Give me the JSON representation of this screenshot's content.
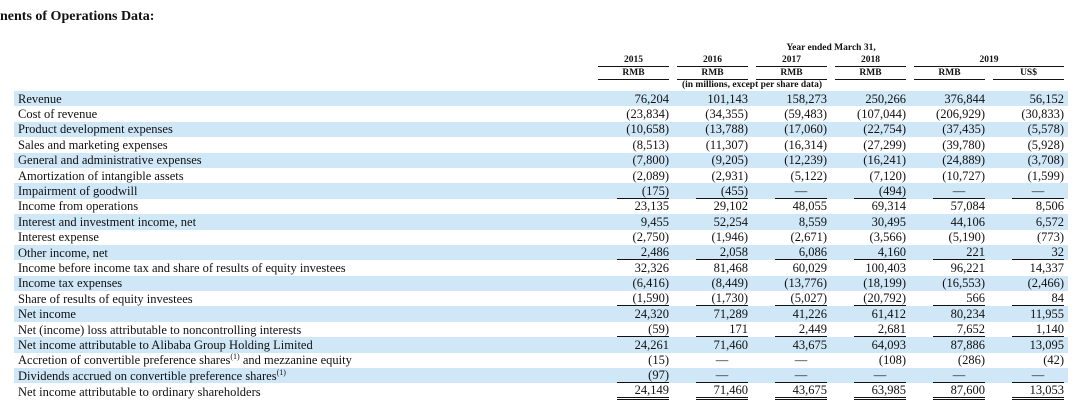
{
  "page": {
    "heading": "nents of Operations Data:"
  },
  "header": {
    "period_title": "Year ended March 31,",
    "year_2019": "2019",
    "units_note": "(in millions, except per share data)",
    "columns": [
      {
        "year": "2015",
        "currency": "RMB"
      },
      {
        "year": "2016",
        "currency": "RMB"
      },
      {
        "year": "2017",
        "currency": "RMB"
      },
      {
        "year": "2018",
        "currency": "RMB"
      },
      {
        "year": "",
        "currency": "RMB"
      },
      {
        "year": "",
        "currency": "US$"
      }
    ]
  },
  "rows": [
    {
      "label": "Revenue",
      "sup": "",
      "label_after": "",
      "values": [
        "76,204",
        "101,143",
        "158,273",
        "250,266",
        "376,844",
        "56,152"
      ],
      "shade": true,
      "rule": ""
    },
    {
      "label": "Cost of revenue",
      "sup": "",
      "label_after": "",
      "values": [
        "(23,834)",
        "(34,355)",
        "(59,483)",
        "(107,044)",
        "(206,929)",
        "(30,833)"
      ],
      "shade": false,
      "rule": ""
    },
    {
      "label": "Product development expenses",
      "sup": "",
      "label_after": "",
      "values": [
        "(10,658)",
        "(13,788)",
        "(17,060)",
        "(22,754)",
        "(37,435)",
        "(5,578)"
      ],
      "shade": true,
      "rule": ""
    },
    {
      "label": "Sales and marketing expenses",
      "sup": "",
      "label_after": "",
      "values": [
        "(8,513)",
        "(11,307)",
        "(16,314)",
        "(27,299)",
        "(39,780)",
        "(5,928)"
      ],
      "shade": false,
      "rule": ""
    },
    {
      "label": "General and administrative expenses",
      "sup": "",
      "label_after": "",
      "values": [
        "(7,800)",
        "(9,205)",
        "(12,239)",
        "(16,241)",
        "(24,889)",
        "(3,708)"
      ],
      "shade": true,
      "rule": ""
    },
    {
      "label": "Amortization of intangible assets",
      "sup": "",
      "label_after": "",
      "values": [
        "(2,089)",
        "(2,931)",
        "(5,122)",
        "(7,120)",
        "(10,727)",
        "(1,599)"
      ],
      "shade": false,
      "rule": ""
    },
    {
      "label": "Impairment of goodwill",
      "sup": "",
      "label_after": "",
      "values": [
        "(175)",
        "(455)",
        "—",
        "(494)",
        "—",
        "—"
      ],
      "shade": true,
      "rule": "single"
    },
    {
      "label": "Income from operations",
      "sup": "",
      "label_after": "",
      "values": [
        "23,135",
        "29,102",
        "48,055",
        "69,314",
        "57,084",
        "8,506"
      ],
      "shade": false,
      "rule": ""
    },
    {
      "label": "Interest and investment income, net",
      "sup": "",
      "label_after": "",
      "values": [
        "9,455",
        "52,254",
        "8,559",
        "30,495",
        "44,106",
        "6,572"
      ],
      "shade": true,
      "rule": ""
    },
    {
      "label": "Interest expense",
      "sup": "",
      "label_after": "",
      "values": [
        "(2,750)",
        "(1,946)",
        "(2,671)",
        "(3,566)",
        "(5,190)",
        "(773)"
      ],
      "shade": false,
      "rule": ""
    },
    {
      "label": "Other income, net",
      "sup": "",
      "label_after": "",
      "values": [
        "2,486",
        "2,058",
        "6,086",
        "4,160",
        "221",
        "32"
      ],
      "shade": true,
      "rule": "single"
    },
    {
      "label": "Income before income tax and share of results of equity investees",
      "sup": "",
      "label_after": "",
      "values": [
        "32,326",
        "81,468",
        "60,029",
        "100,403",
        "96,221",
        "14,337"
      ],
      "shade": false,
      "rule": ""
    },
    {
      "label": "Income tax expenses",
      "sup": "",
      "label_after": "",
      "values": [
        "(6,416)",
        "(8,449)",
        "(13,776)",
        "(18,199)",
        "(16,553)",
        "(2,466)"
      ],
      "shade": true,
      "rule": ""
    },
    {
      "label": "Share of results of equity investees",
      "sup": "",
      "label_after": "",
      "values": [
        "(1,590)",
        "(1,730)",
        "(5,027)",
        "(20,792)",
        "566",
        "84"
      ],
      "shade": false,
      "rule": "single"
    },
    {
      "label": "Net income",
      "sup": "",
      "label_after": "",
      "values": [
        "24,320",
        "71,289",
        "41,226",
        "61,412",
        "80,234",
        "11,955"
      ],
      "shade": true,
      "rule": ""
    },
    {
      "label": "Net (income) loss attributable to noncontrolling interests",
      "sup": "",
      "label_after": "",
      "values": [
        "(59)",
        "171",
        "2,449",
        "2,681",
        "7,652",
        "1,140"
      ],
      "shade": false,
      "rule": "single"
    },
    {
      "label": "Net income attributable to Alibaba Group Holding Limited",
      "sup": "",
      "label_after": "",
      "values": [
        "24,261",
        "71,460",
        "43,675",
        "64,093",
        "87,886",
        "13,095"
      ],
      "shade": true,
      "rule": ""
    },
    {
      "label": "Accretion of convertible preference shares",
      "sup": "(1)",
      "label_after": " and mezzanine equity",
      "values": [
        "(15)",
        "—",
        "—",
        "(108)",
        "(286)",
        "(42)"
      ],
      "shade": false,
      "rule": ""
    },
    {
      "label": "Dividends accrued on convertible preference shares",
      "sup": "(1)",
      "label_after": "",
      "values": [
        "(97)",
        "—",
        "—",
        "—",
        "—",
        "—"
      ],
      "shade": true,
      "rule": "single"
    },
    {
      "label": "Net income attributable to ordinary shareholders",
      "sup": "",
      "label_after": "",
      "values": [
        "24,149",
        "71,460",
        "43,675",
        "63,985",
        "87,600",
        "13,053"
      ],
      "shade": false,
      "rule": "double"
    }
  ]
}
